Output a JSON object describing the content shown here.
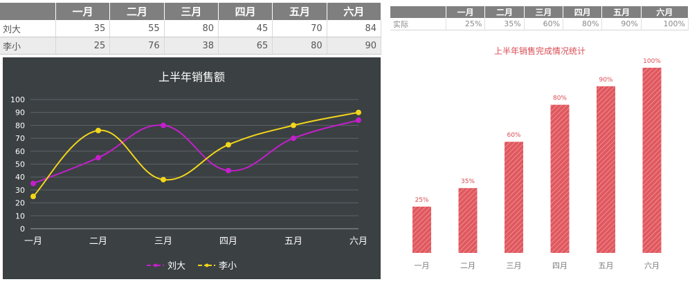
{
  "months": [
    "一月",
    "二月",
    "三月",
    "四月",
    "五月",
    "六月"
  ],
  "left_table": {
    "rows": [
      {
        "name": "刘大",
        "values": [
          35,
          55,
          80,
          45,
          70,
          84
        ]
      },
      {
        "name": "李小",
        "values": [
          25,
          76,
          38,
          65,
          80,
          90
        ]
      }
    ]
  },
  "right_table": {
    "rows": [
      {
        "name": "实际",
        "values": [
          "25%",
          "35%",
          "60%",
          "80%",
          "90%",
          "100%"
        ]
      }
    ]
  },
  "chart_data": [
    {
      "type": "line",
      "title": "上半年销售额",
      "xlabel": "",
      "ylabel": "",
      "categories": [
        "一月",
        "二月",
        "三月",
        "四月",
        "五月",
        "六月"
      ],
      "ylim": [
        0,
        100
      ],
      "yticks": [
        0,
        10,
        20,
        30,
        40,
        50,
        60,
        70,
        80,
        90,
        100
      ],
      "grid": true,
      "smooth": true,
      "legend": "bottom",
      "series": [
        {
          "name": "刘大",
          "values": [
            35,
            55,
            80,
            45,
            70,
            84
          ],
          "color": "#c41fcc"
        },
        {
          "name": "李小",
          "values": [
            25,
            76,
            38,
            65,
            80,
            90
          ],
          "color": "#f3d61a"
        }
      ]
    },
    {
      "type": "bar",
      "title": "上半年销售完成情况统计",
      "xlabel": "",
      "ylabel": "",
      "categories": [
        "一月",
        "二月",
        "三月",
        "四月",
        "五月",
        "六月"
      ],
      "values": [
        25,
        35,
        60,
        80,
        90,
        100
      ],
      "value_labels": [
        "25%",
        "35%",
        "60%",
        "80%",
        "90%",
        "100%"
      ],
      "ylim": [
        0,
        100
      ],
      "grid": false,
      "color": "#e0585f"
    }
  ]
}
